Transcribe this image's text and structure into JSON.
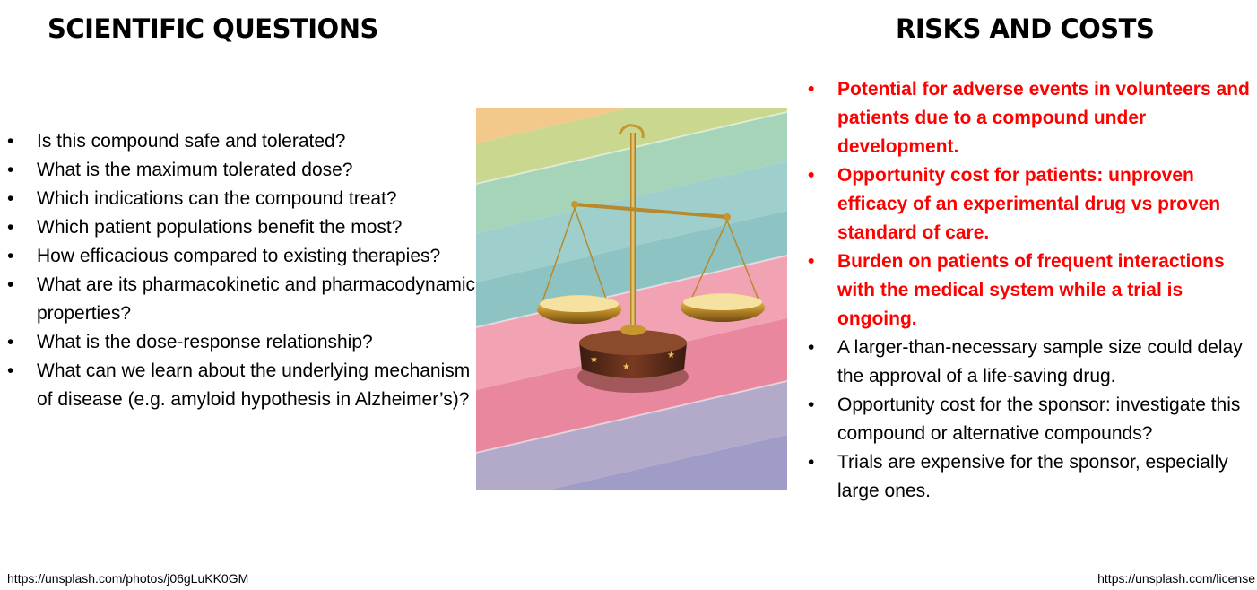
{
  "left_section": {
    "heading": "SCIENTIFIC QUESTIONS",
    "items": [
      "Is this compound safe and tolerated?",
      "What is the maximum tolerated dose?",
      "Which indications can the compound treat?",
      "Which patient populations benefit the most?",
      "How efficacious compared to existing therapies?",
      "What are its pharmacokinetic and pharmacodynamic properties?",
      "What is the dose-response relationship?",
      "What can we learn about the underlying mechanism of disease (e.g. amyloid hypothesis in Alzheimer’s)?"
    ]
  },
  "right_section": {
    "heading": "RISKS AND COSTS",
    "highlight_color": "#ff0000",
    "items": [
      {
        "text": "Potential for adverse events in volunteers and patients due to a compound under development.",
        "highlighted": true
      },
      {
        "text": "Opportunity cost for patients: unproven efficacy of an experimental drug vs proven standard of care.",
        "highlighted": true
      },
      {
        "text": "Burden on patients of frequent interactions with the medical system while a trial is ongoing.",
        "highlighted": true
      },
      {
        "text": "A larger-than-necessary sample size could delay the approval of a life-saving drug.",
        "highlighted": false
      },
      {
        "text": "Opportunity cost for the sponsor: investigate this compound or alternative compounds?",
        "highlighted": false
      },
      {
        "text": "Trials are expensive for the sponsor, especially large ones.",
        "highlighted": false
      }
    ]
  },
  "image": {
    "subject": "scales-of-justice-photo"
  },
  "footer": {
    "photo_credit": "https://unsplash.com/photos/j06gLuKK0GM",
    "license": "https://unsplash.com/license"
  }
}
